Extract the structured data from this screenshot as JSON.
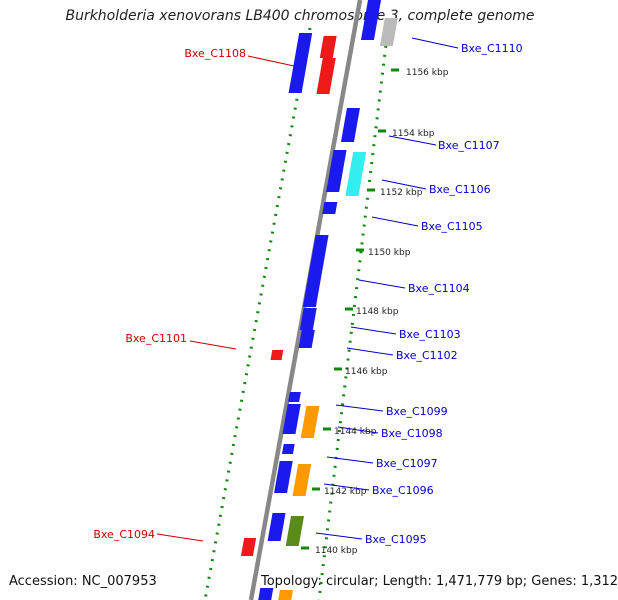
{
  "title": "Burkholderia xenovorans LB400 chromosome 3, complete genome",
  "footer": {
    "accession": "Accession: NC_007953",
    "summary": "Topology: circular; Length: 1,471,779 bp; Genes: 1,312"
  },
  "colors": {
    "forward": "#1a1aee",
    "reverse": "#ee1a1a",
    "cyan": "#33eeee",
    "orange": "#ff9900",
    "green": "#5a8a1a",
    "gray": "#bbbbbb",
    "backbone": "#888888",
    "dots": "#118811",
    "forward_label": "#0000cc",
    "reverse_label": "#cc0000"
  },
  "tick_labels": [
    "1140 kbp",
    "1142 kbp",
    "1144 kbp",
    "1146 kbp",
    "1148 kbp",
    "1150 kbp",
    "1152 kbp",
    "1154 kbp",
    "1156 kbp"
  ],
  "gene_labels_right": [
    "Bxe_C1110",
    "Bxe_C1107",
    "Bxe_C1106",
    "Bxe_C1105",
    "Bxe_C1104",
    "Bxe_C1103",
    "Bxe_C1102",
    "Bxe_C1099",
    "Bxe_C1098",
    "Bxe_C1097",
    "Bxe_C1096",
    "Bxe_C1095"
  ],
  "gene_labels_left": [
    "Bxe_C1108",
    "Bxe_C1101",
    "Bxe_C1094"
  ]
}
